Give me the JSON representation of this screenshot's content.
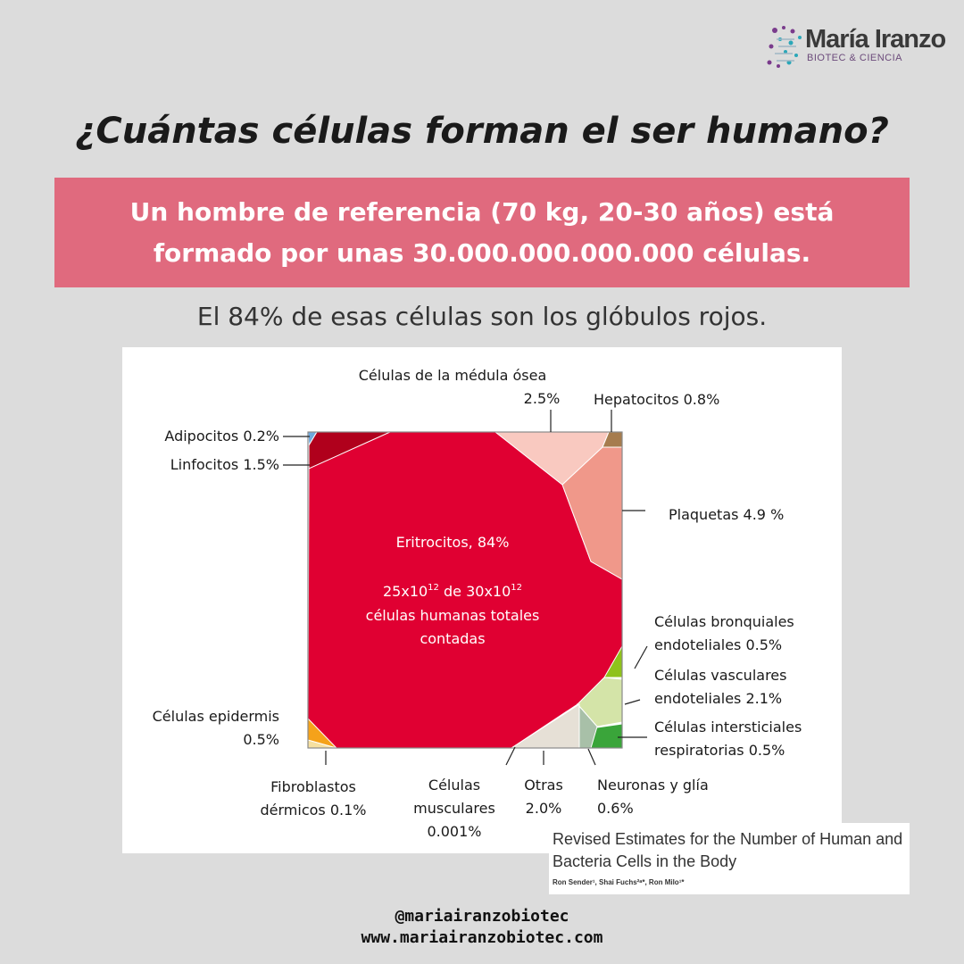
{
  "logo": {
    "name": "María Iranzo",
    "subtitle": "BIOTEC & CIENCIA",
    "icon": "molecule-icon"
  },
  "title": "¿Cuántas células forman el ser humano?",
  "banner": {
    "line1": "Un hombre de referencia (70 kg, 20-30 años) está",
    "line2": "formado por unas 30.000.000.000.000 células.",
    "color": "#e06a7e"
  },
  "subtitle": "El 84% de esas células son los glóbulos rojos.",
  "chart_data": {
    "type": "voronoi-treemap",
    "total": 100,
    "center_label": {
      "line1": "Eritrocitos, 84%",
      "line2": "25x10",
      "line2_sup1": "12",
      "line2_mid": " de 30x10",
      "line2_sup2": "12",
      "line3": "células humanas totales",
      "line4": "contadas"
    },
    "segments": [
      {
        "name": "Eritrocitos",
        "value": 84,
        "color": "#e00032"
      },
      {
        "name": "Adipocitos",
        "value": 0.2,
        "color": "#6fa8dc",
        "label": [
          "Adipocitos 0.2%"
        ]
      },
      {
        "name": "Linfocitos",
        "value": 1.5,
        "color": "#b0001c",
        "label": [
          "Linfocitos 1.5%"
        ]
      },
      {
        "name": "Células de la médula ósea",
        "value": 2.5,
        "color": "#f9c9c0",
        "label": [
          "Células de la médula ósea",
          "2.5%"
        ]
      },
      {
        "name": "Hepatocitos",
        "value": 0.8,
        "color": "#a67c4e",
        "label": [
          "Hepatocitos 0.8%"
        ]
      },
      {
        "name": "Plaquetas",
        "value": 4.9,
        "color": "#f0988a",
        "label": [
          "Plaquetas 4.9 %"
        ]
      },
      {
        "name": "Células bronquiales endoteliales",
        "value": 0.5,
        "color": "#8fc21b",
        "label": [
          "Células bronquiales",
          "endoteliales 0.5%"
        ]
      },
      {
        "name": "Células vasculares endoteliales",
        "value": 2.1,
        "color": "#d4e4a8",
        "label": [
          "Células vasculares",
          "endoteliales 2.1%"
        ]
      },
      {
        "name": "Células intersticiales respiratorias",
        "value": 0.5,
        "color": "#3aa53a",
        "label": [
          "Células intersticiales",
          "respiratorias 0.5%"
        ]
      },
      {
        "name": "Neuronas y glía",
        "value": 0.6,
        "color": "#a8c0a8",
        "label": [
          "Neuronas y glía",
          "0.6%"
        ]
      },
      {
        "name": "Otras",
        "value": 2.0,
        "color": "#e6e0d6",
        "label": [
          "Otras",
          "2.0%"
        ]
      },
      {
        "name": "Células musculares",
        "value": 0.001,
        "color": "#d0d0d0",
        "label": [
          "Células",
          "musculares",
          "0.001%"
        ]
      },
      {
        "name": "Fibroblastos dérmicos",
        "value": 0.1,
        "color": "#f6e0a0",
        "label": [
          "Fibroblastos",
          "dérmicos 0.1%"
        ]
      },
      {
        "name": "Células epidermis",
        "value": 0.5,
        "color": "#f5a21a",
        "label": [
          "Células epidermis",
          "0.5%"
        ]
      }
    ]
  },
  "reference": {
    "title": "Revised Estimates for the Number of Human and Bacteria Cells in the Body",
    "authors": "Ron Sender¹, Shai Fuchs²ᵃ*, Ron Milo¹*"
  },
  "footer": {
    "handle": "@mariairanzobiotec",
    "website": "www.mariairanzobiotec.com"
  }
}
